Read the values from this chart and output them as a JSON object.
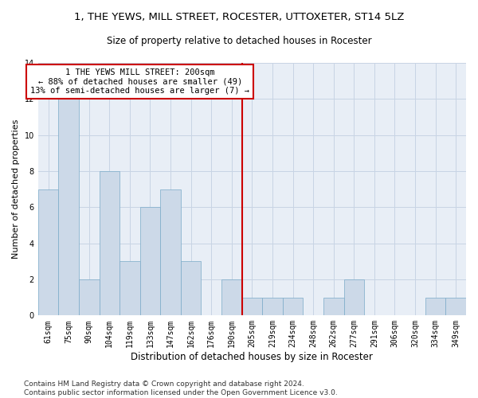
{
  "title": "1, THE YEWS, MILL STREET, ROCESTER, UTTOXETER, ST14 5LZ",
  "subtitle": "Size of property relative to detached houses in Rocester",
  "xlabel": "Distribution of detached houses by size in Rocester",
  "ylabel": "Number of detached properties",
  "categories": [
    "61sqm",
    "75sqm",
    "90sqm",
    "104sqm",
    "119sqm",
    "133sqm",
    "147sqm",
    "162sqm",
    "176sqm",
    "190sqm",
    "205sqm",
    "219sqm",
    "234sqm",
    "248sqm",
    "262sqm",
    "277sqm",
    "291sqm",
    "306sqm",
    "320sqm",
    "334sqm",
    "349sqm"
  ],
  "values": [
    7,
    12,
    2,
    8,
    3,
    6,
    7,
    3,
    0,
    2,
    1,
    1,
    1,
    0,
    1,
    2,
    0,
    0,
    0,
    1,
    1
  ],
  "bar_color": "#ccd9e8",
  "bar_edge_color": "#7aaac8",
  "grid_color": "#c8d4e4",
  "background_color": "#e8eef6",
  "annotation_text": "1 THE YEWS MILL STREET: 200sqm\n← 88% of detached houses are smaller (49)\n13% of semi-detached houses are larger (7) →",
  "vline_x_index": 9.5,
  "vline_color": "#cc0000",
  "annotation_box_color": "#cc0000",
  "ylim": [
    0,
    14
  ],
  "yticks": [
    0,
    2,
    4,
    6,
    8,
    10,
    12,
    14
  ],
  "footer": "Contains HM Land Registry data © Crown copyright and database right 2024.\nContains public sector information licensed under the Open Government Licence v3.0.",
  "title_fontsize": 9.5,
  "subtitle_fontsize": 8.5,
  "xlabel_fontsize": 8.5,
  "ylabel_fontsize": 8,
  "tick_fontsize": 7,
  "annotation_fontsize": 7.5,
  "footer_fontsize": 6.5
}
